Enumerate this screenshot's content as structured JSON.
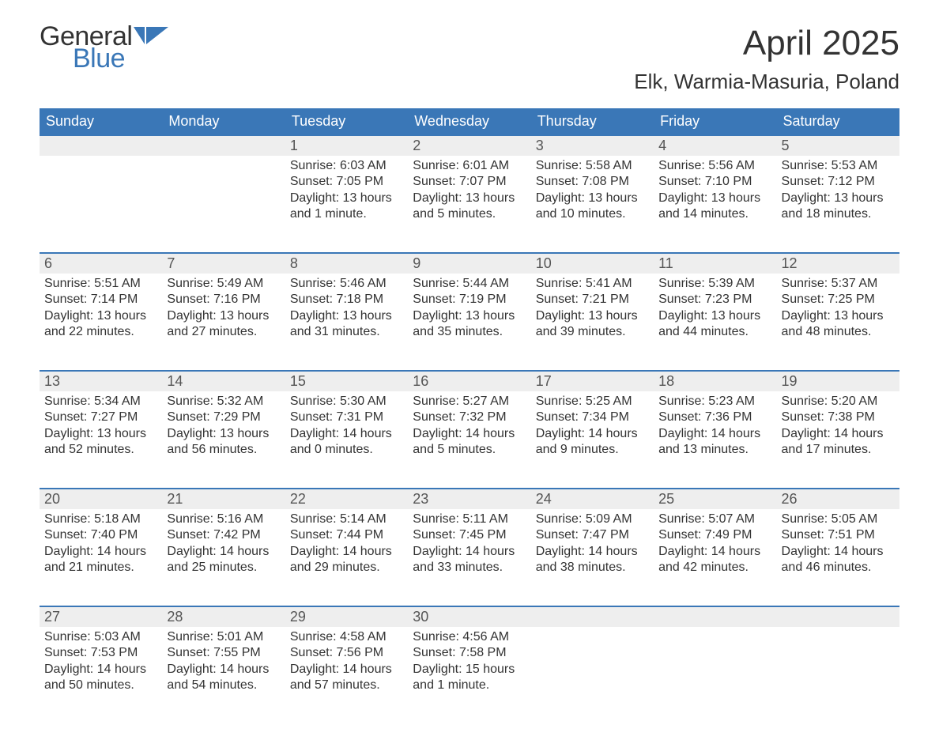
{
  "logo": {
    "general": "General",
    "blue": "Blue",
    "shape_color": "#3a77b7"
  },
  "title": "April 2025",
  "location": "Elk, Warmia-Masuria, Poland",
  "colors": {
    "header_bg": "#3a77b7",
    "header_text": "#ffffff",
    "daynum_bg": "#eeeeee",
    "divider": "#3a77b7",
    "body_text": "#333333",
    "page_bg": "#ffffff"
  },
  "typography": {
    "title_fontsize": 44,
    "location_fontsize": 26,
    "weekday_fontsize": 18,
    "daynum_fontsize": 18,
    "body_fontsize": 16
  },
  "weekdays": [
    "Sunday",
    "Monday",
    "Tuesday",
    "Wednesday",
    "Thursday",
    "Friday",
    "Saturday"
  ],
  "weeks": [
    [
      null,
      null,
      {
        "n": "1",
        "sr": "Sunrise: 6:03 AM",
        "ss": "Sunset: 7:05 PM",
        "d1": "Daylight: 13 hours",
        "d2": "and 1 minute."
      },
      {
        "n": "2",
        "sr": "Sunrise: 6:01 AM",
        "ss": "Sunset: 7:07 PM",
        "d1": "Daylight: 13 hours",
        "d2": "and 5 minutes."
      },
      {
        "n": "3",
        "sr": "Sunrise: 5:58 AM",
        "ss": "Sunset: 7:08 PM",
        "d1": "Daylight: 13 hours",
        "d2": "and 10 minutes."
      },
      {
        "n": "4",
        "sr": "Sunrise: 5:56 AM",
        "ss": "Sunset: 7:10 PM",
        "d1": "Daylight: 13 hours",
        "d2": "and 14 minutes."
      },
      {
        "n": "5",
        "sr": "Sunrise: 5:53 AM",
        "ss": "Sunset: 7:12 PM",
        "d1": "Daylight: 13 hours",
        "d2": "and 18 minutes."
      }
    ],
    [
      {
        "n": "6",
        "sr": "Sunrise: 5:51 AM",
        "ss": "Sunset: 7:14 PM",
        "d1": "Daylight: 13 hours",
        "d2": "and 22 minutes."
      },
      {
        "n": "7",
        "sr": "Sunrise: 5:49 AM",
        "ss": "Sunset: 7:16 PM",
        "d1": "Daylight: 13 hours",
        "d2": "and 27 minutes."
      },
      {
        "n": "8",
        "sr": "Sunrise: 5:46 AM",
        "ss": "Sunset: 7:18 PM",
        "d1": "Daylight: 13 hours",
        "d2": "and 31 minutes."
      },
      {
        "n": "9",
        "sr": "Sunrise: 5:44 AM",
        "ss": "Sunset: 7:19 PM",
        "d1": "Daylight: 13 hours",
        "d2": "and 35 minutes."
      },
      {
        "n": "10",
        "sr": "Sunrise: 5:41 AM",
        "ss": "Sunset: 7:21 PM",
        "d1": "Daylight: 13 hours",
        "d2": "and 39 minutes."
      },
      {
        "n": "11",
        "sr": "Sunrise: 5:39 AM",
        "ss": "Sunset: 7:23 PM",
        "d1": "Daylight: 13 hours",
        "d2": "and 44 minutes."
      },
      {
        "n": "12",
        "sr": "Sunrise: 5:37 AM",
        "ss": "Sunset: 7:25 PM",
        "d1": "Daylight: 13 hours",
        "d2": "and 48 minutes."
      }
    ],
    [
      {
        "n": "13",
        "sr": "Sunrise: 5:34 AM",
        "ss": "Sunset: 7:27 PM",
        "d1": "Daylight: 13 hours",
        "d2": "and 52 minutes."
      },
      {
        "n": "14",
        "sr": "Sunrise: 5:32 AM",
        "ss": "Sunset: 7:29 PM",
        "d1": "Daylight: 13 hours",
        "d2": "and 56 minutes."
      },
      {
        "n": "15",
        "sr": "Sunrise: 5:30 AM",
        "ss": "Sunset: 7:31 PM",
        "d1": "Daylight: 14 hours",
        "d2": "and 0 minutes."
      },
      {
        "n": "16",
        "sr": "Sunrise: 5:27 AM",
        "ss": "Sunset: 7:32 PM",
        "d1": "Daylight: 14 hours",
        "d2": "and 5 minutes."
      },
      {
        "n": "17",
        "sr": "Sunrise: 5:25 AM",
        "ss": "Sunset: 7:34 PM",
        "d1": "Daylight: 14 hours",
        "d2": "and 9 minutes."
      },
      {
        "n": "18",
        "sr": "Sunrise: 5:23 AM",
        "ss": "Sunset: 7:36 PM",
        "d1": "Daylight: 14 hours",
        "d2": "and 13 minutes."
      },
      {
        "n": "19",
        "sr": "Sunrise: 5:20 AM",
        "ss": "Sunset: 7:38 PM",
        "d1": "Daylight: 14 hours",
        "d2": "and 17 minutes."
      }
    ],
    [
      {
        "n": "20",
        "sr": "Sunrise: 5:18 AM",
        "ss": "Sunset: 7:40 PM",
        "d1": "Daylight: 14 hours",
        "d2": "and 21 minutes."
      },
      {
        "n": "21",
        "sr": "Sunrise: 5:16 AM",
        "ss": "Sunset: 7:42 PM",
        "d1": "Daylight: 14 hours",
        "d2": "and 25 minutes."
      },
      {
        "n": "22",
        "sr": "Sunrise: 5:14 AM",
        "ss": "Sunset: 7:44 PM",
        "d1": "Daylight: 14 hours",
        "d2": "and 29 minutes."
      },
      {
        "n": "23",
        "sr": "Sunrise: 5:11 AM",
        "ss": "Sunset: 7:45 PM",
        "d1": "Daylight: 14 hours",
        "d2": "and 33 minutes."
      },
      {
        "n": "24",
        "sr": "Sunrise: 5:09 AM",
        "ss": "Sunset: 7:47 PM",
        "d1": "Daylight: 14 hours",
        "d2": "and 38 minutes."
      },
      {
        "n": "25",
        "sr": "Sunrise: 5:07 AM",
        "ss": "Sunset: 7:49 PM",
        "d1": "Daylight: 14 hours",
        "d2": "and 42 minutes."
      },
      {
        "n": "26",
        "sr": "Sunrise: 5:05 AM",
        "ss": "Sunset: 7:51 PM",
        "d1": "Daylight: 14 hours",
        "d2": "and 46 minutes."
      }
    ],
    [
      {
        "n": "27",
        "sr": "Sunrise: 5:03 AM",
        "ss": "Sunset: 7:53 PM",
        "d1": "Daylight: 14 hours",
        "d2": "and 50 minutes."
      },
      {
        "n": "28",
        "sr": "Sunrise: 5:01 AM",
        "ss": "Sunset: 7:55 PM",
        "d1": "Daylight: 14 hours",
        "d2": "and 54 minutes."
      },
      {
        "n": "29",
        "sr": "Sunrise: 4:58 AM",
        "ss": "Sunset: 7:56 PM",
        "d1": "Daylight: 14 hours",
        "d2": "and 57 minutes."
      },
      {
        "n": "30",
        "sr": "Sunrise: 4:56 AM",
        "ss": "Sunset: 7:58 PM",
        "d1": "Daylight: 15 hours",
        "d2": "and 1 minute."
      },
      null,
      null,
      null
    ]
  ]
}
